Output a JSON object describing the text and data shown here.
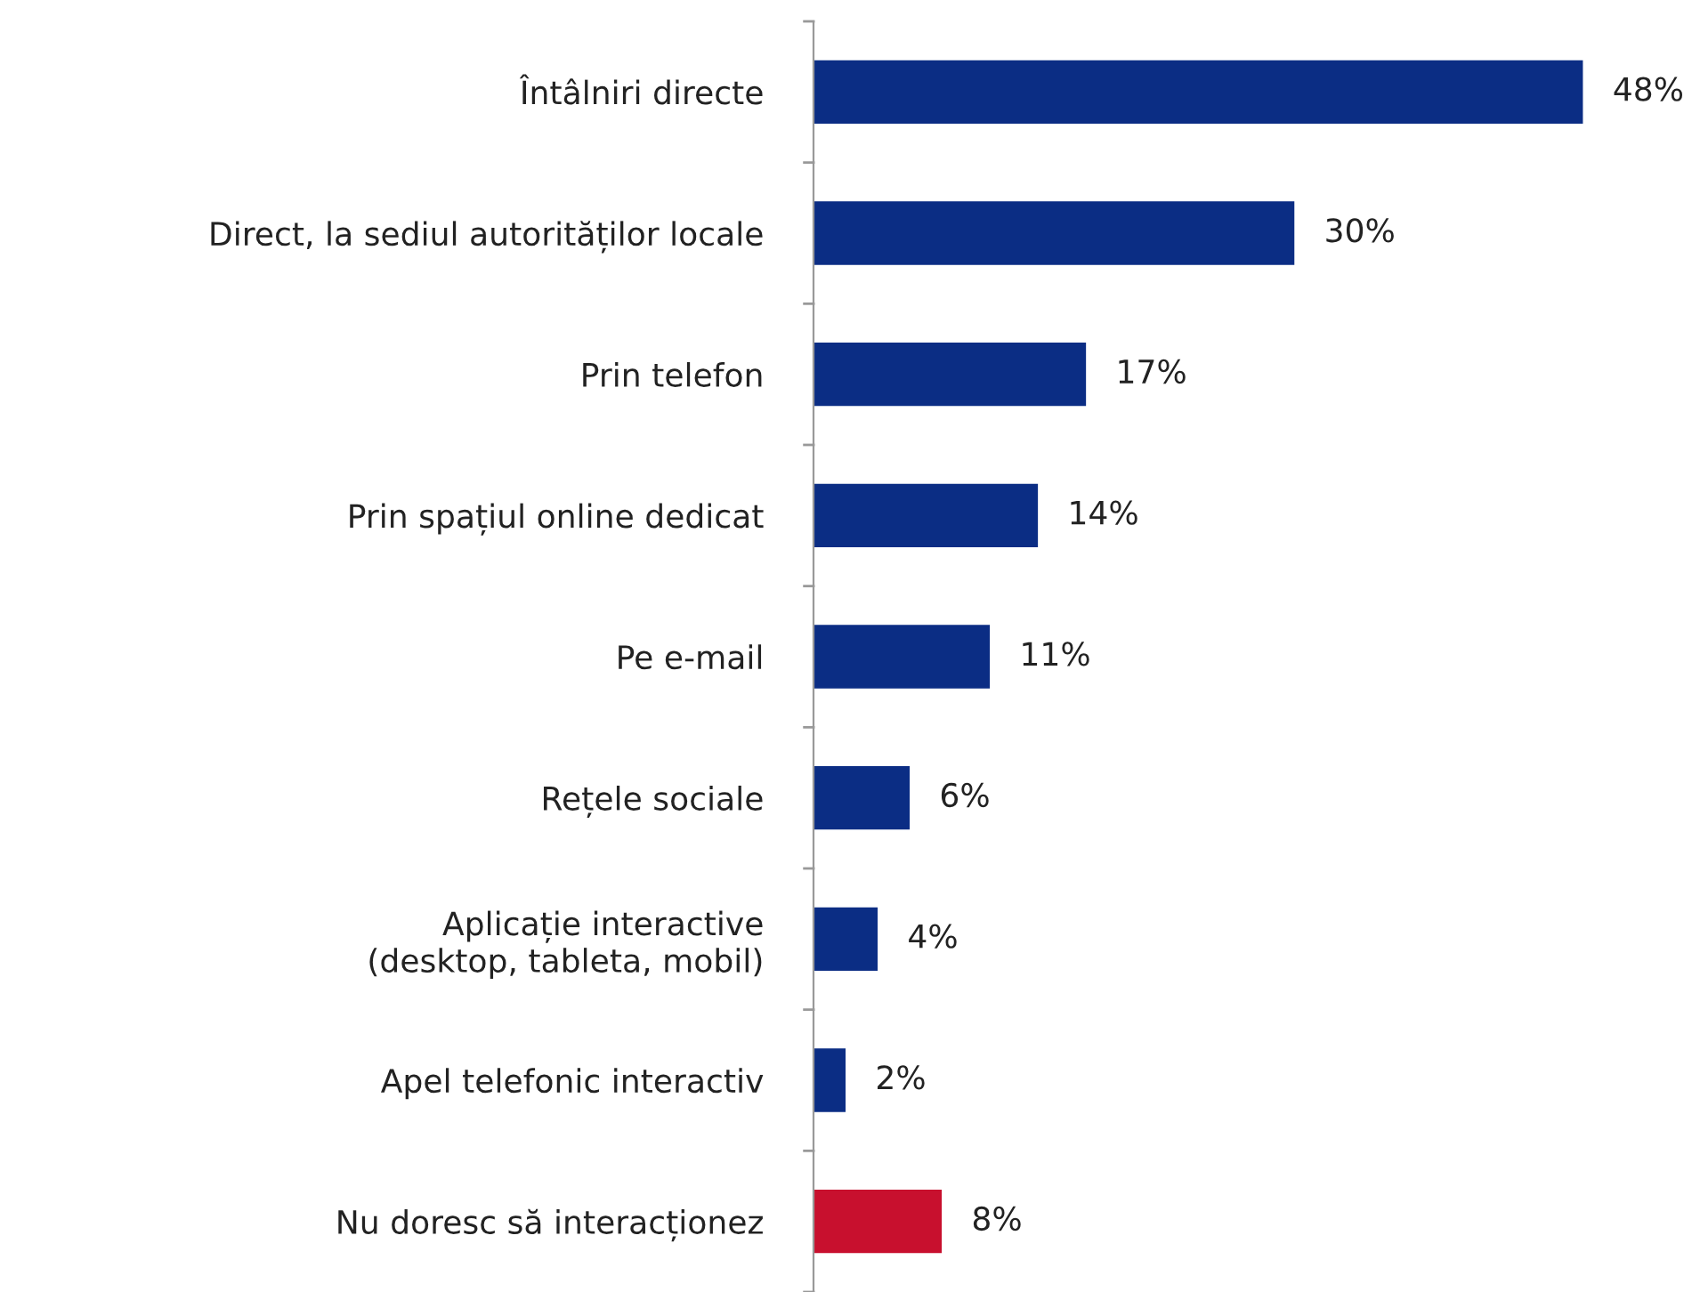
{
  "chart_data": {
    "type": "bar",
    "orientation": "horizontal",
    "categories": [
      "Întâlniri directe",
      "Direct, la sediul autorităților locale",
      "Prin telefon",
      "Prin spațiul online dedicat",
      "Pe e-mail",
      "Rețele sociale",
      "Aplicație interactive\n(desktop, tableta, mobil)",
      "Apel telefonic interactiv",
      "Nu doresc să interacționez"
    ],
    "values": [
      48,
      30,
      17,
      14,
      11,
      6,
      4,
      2,
      8
    ],
    "colors": [
      "#0b2d84",
      "#0b2d84",
      "#0b2d84",
      "#0b2d84",
      "#0b2d84",
      "#0b2d84",
      "#0b2d84",
      "#0b2d84",
      "#c8102e"
    ],
    "value_labels": [
      "48%",
      "30%",
      "17%",
      "14%",
      "11%",
      "6%",
      "4%",
      "2%",
      "8%"
    ],
    "grid": false,
    "legend": false
  }
}
